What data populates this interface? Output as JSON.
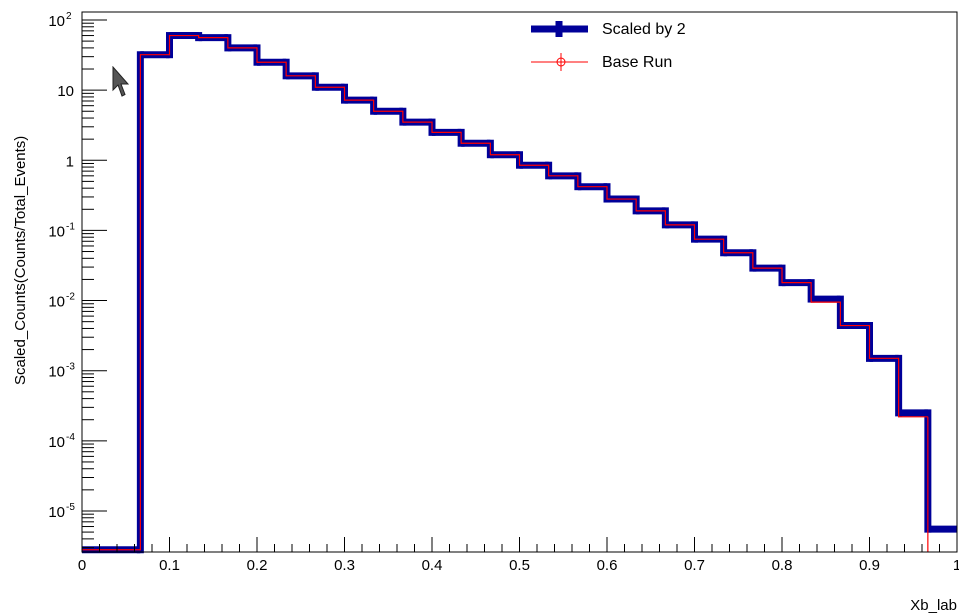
{
  "chart_data": {
    "type": "histogram-step",
    "log_y": true,
    "title": "",
    "xlabel": "Xb_lab",
    "ylabel": "Scaled_Counts(Counts/Total_Events)",
    "xlim": [
      0,
      1
    ],
    "ylim": [
      2.6e-06,
      130
    ],
    "x_ticks": [
      "0",
      "0.1",
      "0.2",
      "0.3",
      "0.4",
      "0.5",
      "0.6",
      "0.7",
      "0.8",
      "0.9",
      "1"
    ],
    "y_ticks": [
      {
        "base": "10",
        "exp": "-5",
        "value": 1e-05
      },
      {
        "base": "10",
        "exp": "-4",
        "value": 0.0001
      },
      {
        "base": "10",
        "exp": "-3",
        "value": 0.001
      },
      {
        "base": "10",
        "exp": "-2",
        "value": 0.01
      },
      {
        "base": "10",
        "exp": "-1",
        "value": 0.1
      },
      {
        "base": "1",
        "exp": "",
        "value": 1
      },
      {
        "base": "10",
        "exp": "",
        "value": 10
      },
      {
        "base": "10",
        "exp": "2",
        "value": 100
      }
    ],
    "bin_edges": [
      0.0,
      0.0667,
      0.1,
      0.1333,
      0.1667,
      0.2,
      0.2333,
      0.2667,
      0.3,
      0.3333,
      0.3667,
      0.4,
      0.4333,
      0.4667,
      0.5,
      0.5333,
      0.5667,
      0.6,
      0.6333,
      0.6667,
      0.7,
      0.7333,
      0.7667,
      0.8,
      0.8333,
      0.8667,
      0.9,
      0.9333,
      0.9667,
      1.0
    ],
    "series": [
      {
        "name": "Scaled by 2",
        "color": "#000099",
        "values": [
          2.8e-06,
          32,
          60,
          56,
          40,
          25,
          16,
          11,
          7.2,
          5.0,
          3.5,
          2.5,
          1.75,
          1.2,
          0.85,
          0.6,
          0.42,
          0.28,
          0.19,
          0.12,
          0.075,
          0.048,
          0.029,
          0.018,
          0.0105,
          0.0044,
          0.0015,
          0.00025,
          5.5e-06
        ]
      },
      {
        "name": "Base Run",
        "color": "#ff0000",
        "values": [
          2.8e-06,
          32,
          60,
          56,
          40,
          25,
          16,
          11,
          7.2,
          5.0,
          3.5,
          2.5,
          1.75,
          1.2,
          0.85,
          0.6,
          0.42,
          0.28,
          0.19,
          0.12,
          0.075,
          0.048,
          0.029,
          0.018,
          0.0095,
          0.0044,
          0.0015,
          0.00022,
          null
        ]
      }
    ],
    "legend": {
      "position": "top-center",
      "entries": [
        "Scaled by 2",
        "Base Run"
      ]
    }
  }
}
